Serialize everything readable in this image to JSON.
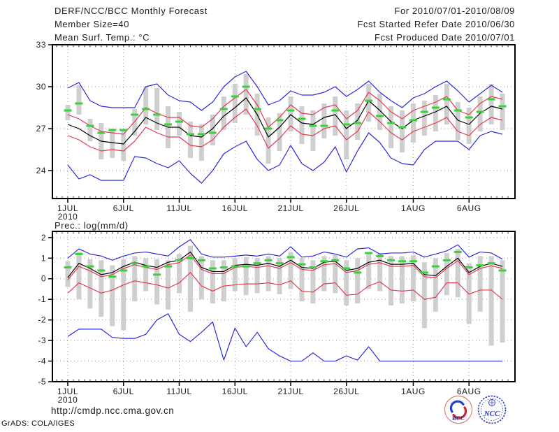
{
  "header": {
    "title": "DERF/NCC/BCC Monthly Forecast",
    "member_size": "Member Size=40",
    "for_range": "For 2010/07/01-2010/08/09",
    "refer_date": "Fcst Started Refer Date 2010/06/30",
    "produced_date": "Fcst Produced Date 2010/07/01"
  },
  "footer": {
    "url": "http://cmdp.ncc.cma.gov.cn",
    "credit": "GrADS: COLA/IGES",
    "logo_bcc": "BCC",
    "logo_ncc": "NCC"
  },
  "colors": {
    "envelope_blue": "#2b2bd6",
    "quartile_red": "#e23b52",
    "mean_black": "#000000",
    "obs_green": "#3ad13a",
    "spread_bar": "#cfcfcf",
    "grid": "#999999",
    "tick": "#444444",
    "text": "#1c1c1c"
  },
  "chart_data": [
    {
      "type": "line",
      "title": "Mean Surf. Temp.: °C",
      "x_tick_labels": [
        "1JUL",
        "6JUL",
        "11JUL",
        "16JUL",
        "21JUL",
        "26JUL",
        "1AUG",
        "6AUG"
      ],
      "x_tick_days": [
        1,
        6,
        11,
        16,
        21,
        26,
        32,
        37
      ],
      "x_year_label": "2010",
      "n_days": 40,
      "ylim": [
        22,
        33
      ],
      "yticks": [
        33,
        30,
        27,
        24
      ],
      "grid": true,
      "legend": "none",
      "series": [
        {
          "name": "ensemble-max",
          "color_key": "envelope_blue",
          "values": [
            29.9,
            30.3,
            29.0,
            28.6,
            28.5,
            28.5,
            28.5,
            30.0,
            30.2,
            29.4,
            29.0,
            28.9,
            28.3,
            28.9,
            30.0,
            30.7,
            31.1,
            30.0,
            28.7,
            29.0,
            29.7,
            29.4,
            29.4,
            29.6,
            30.0,
            29.3,
            29.8,
            30.4,
            29.6,
            29.0,
            28.5,
            29.2,
            29.5,
            30.0,
            30.4,
            29.7,
            28.9,
            29.5,
            30.1,
            29.6
          ]
        },
        {
          "name": "upper-spread",
          "color_key": "quartile_red",
          "values": [
            28.0,
            27.7,
            27.2,
            26.8,
            26.7,
            26.6,
            27.5,
            28.5,
            28.1,
            27.8,
            27.8,
            27.2,
            27.1,
            27.7,
            28.6,
            29.2,
            29.8,
            28.7,
            27.1,
            27.8,
            28.7,
            28.1,
            28.0,
            28.5,
            28.7,
            27.7,
            28.3,
            29.6,
            29.0,
            28.2,
            27.7,
            28.3,
            28.6,
            28.9,
            29.3,
            28.3,
            28.0,
            28.8,
            29.3,
            29.1
          ]
        },
        {
          "name": "lower-spread",
          "color_key": "quartile_red",
          "values": [
            26.5,
            26.2,
            25.7,
            25.4,
            25.5,
            25.4,
            26.1,
            27.1,
            26.7,
            26.4,
            26.4,
            25.8,
            25.7,
            26.2,
            27.1,
            27.8,
            28.4,
            27.2,
            25.6,
            26.3,
            27.2,
            26.6,
            26.5,
            27.0,
            27.2,
            26.2,
            26.8,
            28.2,
            27.5,
            26.7,
            26.2,
            26.8,
            27.1,
            27.4,
            27.8,
            26.8,
            26.5,
            27.3,
            27.8,
            27.6
          ]
        },
        {
          "name": "ensemble-min",
          "color_key": "envelope_blue",
          "values": [
            24.4,
            23.4,
            23.7,
            23.3,
            23.3,
            23.3,
            25.0,
            24.9,
            24.5,
            24.2,
            24.7,
            23.8,
            23.1,
            24.0,
            25.2,
            25.7,
            26.1,
            24.8,
            24.0,
            24.4,
            25.8,
            24.5,
            24.0,
            24.6,
            25.7,
            23.9,
            25.4,
            26.7,
            26.0,
            24.9,
            24.5,
            24.4,
            25.5,
            26.1,
            26.1,
            26.1,
            25.5,
            26.5,
            26.8,
            26.6
          ]
        },
        {
          "name": "ensemble-mean",
          "color_key": "mean_black",
          "values": [
            27.3,
            27.0,
            26.5,
            26.1,
            26.0,
            25.9,
            26.8,
            27.8,
            27.4,
            27.1,
            27.1,
            26.5,
            26.4,
            27.0,
            27.9,
            28.5,
            29.2,
            28.0,
            26.4,
            27.1,
            28.0,
            27.4,
            27.3,
            27.8,
            28.0,
            27.0,
            27.6,
            29.0,
            28.3,
            27.5,
            27.0,
            27.6,
            27.9,
            28.2,
            28.6,
            27.6,
            27.3,
            28.1,
            28.6,
            28.4
          ]
        },
        {
          "name": "observation",
          "color_key": "obs_green",
          "style": "dash-marker",
          "values": [
            28.3,
            28.8,
            27.2,
            26.7,
            26.9,
            26.9,
            28.0,
            28.4,
            28.0,
            27.3,
            27.5,
            26.6,
            26.6,
            26.7,
            28.4,
            29.3,
            30.0,
            28.4,
            27.0,
            27.6,
            28.3,
            27.7,
            27.2,
            27.2,
            28.3,
            27.3,
            27.4,
            29.0,
            27.9,
            27.4,
            27.1,
            27.6,
            28.2,
            28.5,
            29.1,
            28.3,
            27.8,
            28.2,
            29.1,
            28.6
          ]
        }
      ],
      "spread_bars": [
        [
          27.6,
          28.7
        ],
        [
          28.0,
          30.1
        ],
        [
          26.1,
          27.7
        ],
        [
          24.8,
          27.4
        ],
        [
          24.9,
          27.0
        ],
        [
          24.7,
          26.9
        ],
        [
          26.5,
          28.4
        ],
        [
          27.3,
          30.0
        ],
        [
          26.9,
          29.9
        ],
        [
          25.6,
          28.6
        ],
        [
          26.5,
          28.2
        ],
        [
          24.9,
          27.5
        ],
        [
          24.7,
          27.3
        ],
        [
          25.8,
          28.0
        ],
        [
          26.9,
          29.3
        ],
        [
          27.4,
          30.2
        ],
        [
          28.0,
          30.9
        ],
        [
          26.5,
          29.5
        ],
        [
          24.5,
          27.8
        ],
        [
          25.4,
          28.1
        ],
        [
          26.8,
          29.3
        ],
        [
          25.9,
          28.6
        ],
        [
          25.4,
          28.3
        ],
        [
          26.3,
          28.8
        ],
        [
          26.5,
          29.3
        ],
        [
          24.8,
          28.3
        ],
        [
          26.2,
          28.8
        ],
        [
          27.5,
          30.2
        ],
        [
          26.9,
          29.5
        ],
        [
          25.6,
          28.6
        ],
        [
          25.3,
          28.3
        ],
        [
          26.0,
          28.8
        ],
        [
          26.5,
          29.0
        ],
        [
          26.8,
          29.4
        ],
        [
          27.3,
          30.2
        ],
        [
          26.2,
          28.9
        ],
        [
          25.9,
          28.5
        ],
        [
          26.8,
          29.3
        ],
        [
          27.3,
          30.2
        ],
        [
          26.9,
          29.5
        ]
      ]
    },
    {
      "type": "line",
      "title": "Prec.: log(mm/d)",
      "x_tick_labels": [
        "1JUL",
        "6JUL",
        "11JUL",
        "16JUL",
        "21JUL",
        "26JUL",
        "1AUG",
        "6AUG"
      ],
      "x_tick_days": [
        1,
        6,
        11,
        16,
        21,
        26,
        32,
        37
      ],
      "x_year_label": "2010",
      "n_days": 40,
      "ylim": [
        -5,
        2.3
      ],
      "yticks": [
        2,
        1,
        0,
        -1,
        -2,
        -3,
        -4,
        -5
      ],
      "grid": true,
      "legend": "none",
      "series": [
        {
          "name": "ensemble-max",
          "color_key": "envelope_blue",
          "values": [
            1.0,
            1.45,
            1.2,
            1.1,
            0.9,
            1.1,
            1.25,
            1.3,
            1.2,
            1.1,
            1.55,
            1.9,
            1.2,
            1.05,
            1.05,
            1.1,
            1.15,
            1.1,
            1.2,
            1.1,
            1.55,
            1.05,
            1.1,
            1.3,
            1.2,
            1.05,
            1.45,
            1.5,
            1.2,
            1.25,
            1.25,
            1.3,
            1.05,
            1.2,
            1.35,
            1.65,
            1.05,
            1.3,
            1.25,
            0.95
          ]
        },
        {
          "name": "upper-spread",
          "color_key": "quartile_red",
          "values": [
            -0.05,
            0.6,
            0.38,
            0.1,
            0.2,
            0.5,
            0.68,
            0.55,
            0.45,
            0.68,
            0.78,
            1.15,
            0.45,
            0.25,
            0.25,
            0.55,
            0.6,
            0.55,
            0.63,
            0.5,
            0.78,
            0.45,
            0.4,
            0.68,
            0.73,
            0.3,
            0.4,
            0.7,
            0.78,
            0.6,
            0.6,
            0.65,
            0.1,
            0.05,
            0.5,
            0.88,
            0.2,
            0.5,
            0.63,
            0.5
          ]
        },
        {
          "name": "lower-spread",
          "color_key": "quartile_red",
          "values": [
            -0.7,
            -0.2,
            -0.45,
            -0.7,
            -0.55,
            -0.3,
            -0.1,
            -0.2,
            -0.3,
            -0.45,
            -0.2,
            0.3,
            -0.35,
            -0.6,
            -0.35,
            -0.3,
            -0.25,
            -0.25,
            -0.2,
            -0.3,
            -0.1,
            -0.6,
            -0.65,
            -0.25,
            -0.2,
            -0.8,
            -0.75,
            -0.35,
            -0.15,
            -0.55,
            -0.6,
            -0.55,
            -1.0,
            -0.9,
            -0.2,
            -0.2,
            -0.75,
            -0.55,
            -0.55,
            -1.0
          ]
        },
        {
          "name": "ensemble-min",
          "color_key": "envelope_blue",
          "values": [
            -2.8,
            -2.45,
            -2.45,
            -2.45,
            -2.85,
            -2.9,
            -2.9,
            -2.7,
            -2.0,
            -1.7,
            -2.7,
            -3.05,
            -2.6,
            -2.1,
            -3.95,
            -2.4,
            -3.3,
            -2.6,
            -3.4,
            -3.75,
            -4.0,
            -4.0,
            -3.6,
            -4.0,
            -4.0,
            -3.75,
            -3.95,
            -3.3,
            -4.0,
            -4.0,
            -4.0,
            -4.0,
            -4.0,
            -4.0,
            -4.0,
            -4.0,
            -4.0,
            -4.0,
            -4.0,
            -4.0
          ]
        },
        {
          "name": "ensemble-mean",
          "color_key": "mean_black",
          "values": [
            0.05,
            0.75,
            0.5,
            0.2,
            0.3,
            0.6,
            0.8,
            0.65,
            0.55,
            0.8,
            0.9,
            1.3,
            0.55,
            0.35,
            0.35,
            0.65,
            0.7,
            0.65,
            0.75,
            0.6,
            0.9,
            0.55,
            0.5,
            0.8,
            0.85,
            0.4,
            0.5,
            0.8,
            0.9,
            0.7,
            0.7,
            0.75,
            0.2,
            0.15,
            0.6,
            1.0,
            0.3,
            0.6,
            0.75,
            0.6
          ]
        },
        {
          "name": "observation",
          "color_key": "obs_green",
          "style": "dash-marker",
          "values": [
            0.55,
            1.2,
            0.6,
            0.4,
            0.1,
            0.4,
            0.75,
            0.6,
            0.2,
            0.6,
            0.9,
            1.0,
            0.9,
            0.5,
            0.55,
            0.6,
            0.6,
            0.75,
            0.9,
            0.75,
            1.05,
            0.7,
            0.55,
            0.85,
            0.9,
            0.5,
            0.3,
            1.25,
            1.1,
            0.9,
            0.85,
            0.85,
            0.3,
            0.6,
            0.9,
            1.3,
            0.55,
            0.65,
            0.75,
            0.4
          ]
        }
      ],
      "spread_bars": [
        [
          -0.4,
          0.85
        ],
        [
          -1.0,
          1.3
        ],
        [
          -1.45,
          0.95
        ],
        [
          -1.85,
          0.9
        ],
        [
          -2.3,
          0.65
        ],
        [
          -2.5,
          0.95
        ],
        [
          -1.1,
          1.1
        ],
        [
          -0.6,
          1.0
        ],
        [
          -1.25,
          0.95
        ],
        [
          -1.5,
          0.9
        ],
        [
          -0.7,
          1.2
        ],
        [
          -1.6,
          1.6
        ],
        [
          -1.0,
          1.1
        ],
        [
          -1.2,
          0.9
        ],
        [
          -1.1,
          0.9
        ],
        [
          -0.6,
          1.0
        ],
        [
          -0.8,
          1.05
        ],
        [
          -0.7,
          1.0
        ],
        [
          -0.6,
          1.1
        ],
        [
          -0.75,
          1.0
        ],
        [
          -0.5,
          1.3
        ],
        [
          -1.1,
          1.0
        ],
        [
          -1.2,
          0.9
        ],
        [
          -0.6,
          1.1
        ],
        [
          -0.7,
          1.15
        ],
        [
          -1.3,
          0.9
        ],
        [
          -1.2,
          1.0
        ],
        [
          -0.5,
          1.3
        ],
        [
          -0.6,
          1.25
        ],
        [
          -1.3,
          1.1
        ],
        [
          -1.2,
          1.1
        ],
        [
          -1.1,
          1.15
        ],
        [
          -2.4,
          0.8
        ],
        [
          -1.6,
          1.0
        ],
        [
          -0.8,
          1.25
        ],
        [
          -0.9,
          1.45
        ],
        [
          -2.2,
          0.75
        ],
        [
          -1.6,
          1.1
        ],
        [
          -3.25,
          1.1
        ],
        [
          -3.1,
          0.9
        ]
      ]
    }
  ]
}
